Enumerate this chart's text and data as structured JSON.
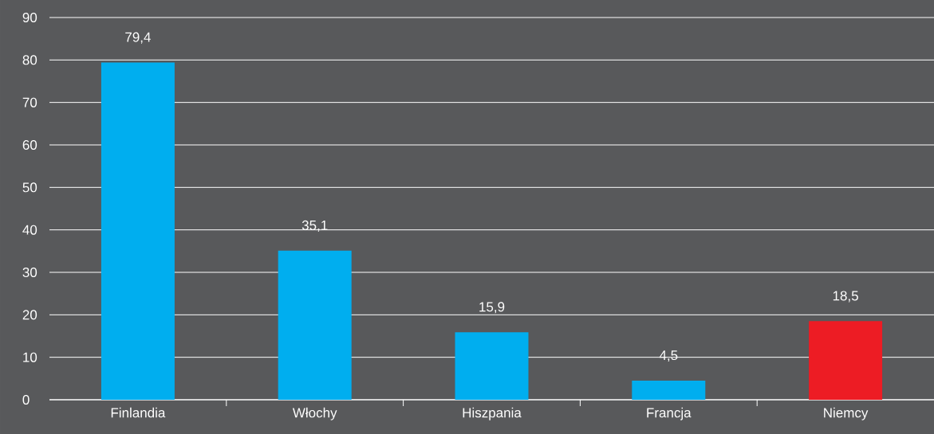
{
  "chart_data": {
    "type": "bar",
    "categories": [
      "Finlandia",
      "Włochy",
      "Hiszpania",
      "Francja",
      "Niemcy"
    ],
    "values": [
      79.4,
      35.1,
      15.9,
      4.5,
      18.5
    ],
    "colors": [
      "#00aeef",
      "#00aeef",
      "#00aeef",
      "#00aeef",
      "#ed1c24"
    ],
    "value_labels": [
      "79,4",
      "35,1",
      "15,9",
      "4,5",
      "18,5"
    ],
    "ylim": [
      0,
      90
    ],
    "yticks": [
      0,
      10,
      20,
      30,
      40,
      50,
      60,
      70,
      80,
      90
    ],
    "grid": "y"
  }
}
